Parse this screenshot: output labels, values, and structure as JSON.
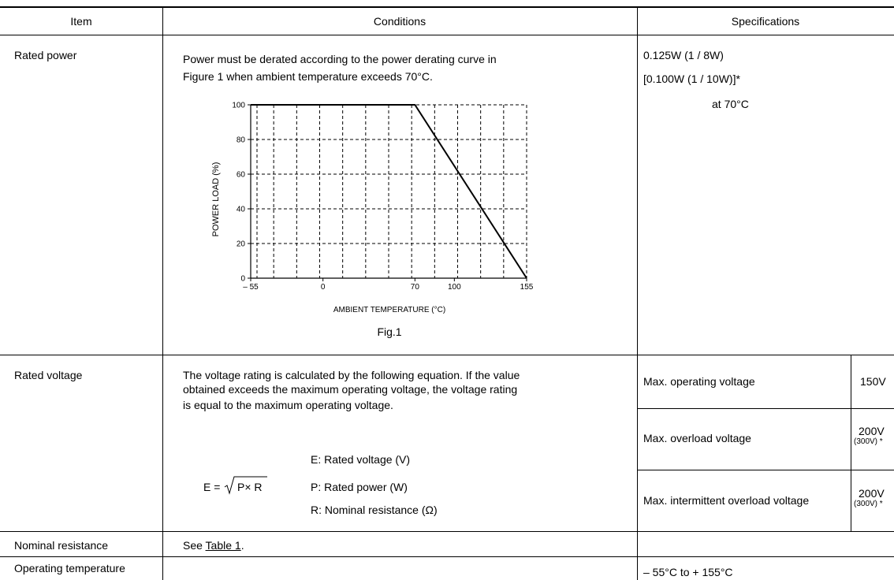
{
  "headers": {
    "item": "Item",
    "conditions": "Conditions",
    "specifications": "Specifications"
  },
  "rated_power": {
    "item": "Rated power",
    "cond_line1": "Power must be derated according to the power derating curve in",
    "cond_line2": "Figure 1 when ambient temperature exceeds 70°C.",
    "spec_line1": "0.125W (1 / 8W)",
    "spec_line2": "[0.100W (1 / 10W)]*",
    "spec_line3": "at  70°C",
    "figure": {
      "ylabel": "POWER  LOAD (%)",
      "xlabel": "AMBIENT  TEMPERATURE  (°C)",
      "caption": "Fig.1"
    }
  },
  "rated_voltage": {
    "item": "Rated voltage",
    "cond_line1": "The voltage rating is calculated by the following equation. If the value",
    "cond_line2": "obtained exceeds the maximum operating voltage, the voltage rating",
    "cond_line3": "is equal to the maximum operating voltage.",
    "eq_lhs": "E =",
    "eq_rad": "P× R",
    "legend_e": "E: Rated voltage (V)",
    "legend_p": "P: Rated power (W)",
    "legend_r": "R: Nominal resistance (Ω)",
    "specs": [
      {
        "label": "Max. operating voltage",
        "value": "150V",
        "sub": ""
      },
      {
        "label": "Max. overload voltage",
        "value": "200V",
        "sub": "(300V) *"
      },
      {
        "label": "Max. intermittent overload voltage",
        "value": "200V",
        "sub": "(300V) *"
      }
    ]
  },
  "nominal_resistance": {
    "item": "Nominal resistance",
    "cond_prefix": "See ",
    "cond_link": "Table 1",
    "cond_suffix": "."
  },
  "operating_temperature": {
    "item": "Operating temperature",
    "spec": "– 55°C to + 155°C"
  },
  "chart_data": {
    "type": "line",
    "title": "",
    "subtitle": "Fig.1",
    "xlabel": "AMBIENT  TEMPERATURE  (°C)",
    "ylabel": "POWER  LOAD (%)",
    "x_ticks": [
      "– 55",
      "0",
      "70",
      "100",
      "155"
    ],
    "y_ticks": [
      "0",
      "20",
      "40",
      "60",
      "80",
      "100"
    ],
    "xlim": [
      -55,
      155
    ],
    "ylim": [
      0,
      100
    ],
    "grid": true,
    "series": [
      {
        "x": [
          -55,
          70,
          155
        ],
        "y": [
          100,
          100,
          0
        ]
      }
    ]
  }
}
